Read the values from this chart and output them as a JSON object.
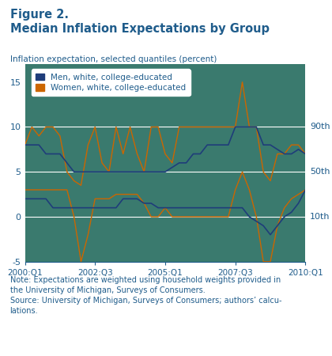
{
  "title_line1": "Figure 2.",
  "title_line2": "Median Inflation Expectations by Group",
  "ylabel": "Inflation expectation, selected quantiles (percent)",
  "bg_color": "#3a7a6e",
  "men_color": "#1f3d7a",
  "women_color": "#cc6600",
  "hline_color": "#ffffff",
  "ylim": [
    -5,
    17
  ],
  "yticks": [
    -5,
    0,
    5,
    10,
    15
  ],
  "hlines": [
    0,
    5,
    10
  ],
  "xlabel_ticks": [
    "2000:Q1",
    "2002:Q3",
    "2005:Q1",
    "2007:Q3",
    "2010:Q1"
  ],
  "tick_positions": [
    0,
    10,
    20,
    30,
    40
  ],
  "note_text": "Note: Expectations are weighted using household weights provided in\nthe University of Michigan, Surveys of Consumers.\nSource: University of Michigan, Surveys of Consumers; authors’ calcu-\nlations.",
  "title_color": "#1f5c8b",
  "label_color": "#1f5c8b",
  "men_90th": [
    8,
    8,
    8,
    7,
    7,
    7,
    6,
    5,
    5,
    5,
    5,
    5,
    5,
    5,
    5,
    5,
    5,
    5,
    5,
    5,
    5,
    5.5,
    6,
    6,
    7,
    7,
    8,
    8,
    8,
    8,
    10,
    10,
    10,
    10,
    8,
    8,
    7.5,
    7,
    7,
    7.5,
    7
  ],
  "men_50th": [
    2,
    2,
    2,
    2,
    1,
    1,
    1,
    1,
    1,
    1,
    1,
    1,
    1,
    1,
    2,
    2,
    2,
    1.5,
    1.5,
    1,
    1,
    1,
    1,
    1,
    1,
    1,
    1,
    1,
    1,
    1,
    1,
    1,
    0,
    -0.5,
    -1,
    -2,
    -1,
    0,
    0.5,
    1.5,
    3
  ],
  "women_90th": [
    8,
    10,
    9,
    10,
    10,
    9,
    5,
    4,
    3.5,
    8,
    10,
    6,
    5,
    10,
    7,
    10,
    7,
    5,
    10,
    10,
    7,
    6,
    10,
    10,
    10,
    10,
    10,
    10,
    10,
    10,
    10,
    15,
    10,
    10,
    5,
    4,
    7,
    7,
    8,
    8,
    7
  ],
  "women_50th": [
    3,
    3,
    3,
    3,
    3,
    3,
    3,
    0,
    -5,
    -2,
    2,
    2,
    2,
    2.5,
    2.5,
    2.5,
    2.5,
    1.5,
    0,
    0,
    1,
    0,
    0,
    0,
    0,
    0,
    0,
    0,
    0,
    0,
    3,
    5,
    3,
    0,
    -5,
    -5,
    -1,
    1,
    2,
    2.5,
    3
  ]
}
